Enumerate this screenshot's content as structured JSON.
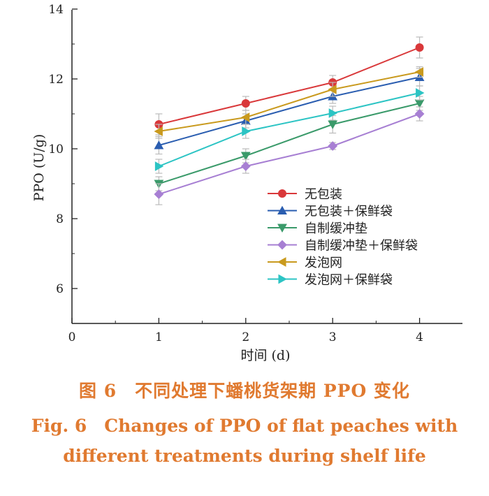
{
  "chart_data": {
    "type": "line",
    "xlabel": "时间 (d)",
    "ylabel": "PPO (U/g)",
    "xlim": [
      0,
      4.5
    ],
    "ylim": [
      5,
      14
    ],
    "x_ticks": [
      0,
      1,
      2,
      3,
      4
    ],
    "y_ticks": [
      6,
      8,
      10,
      12,
      14
    ],
    "x": [
      1,
      2,
      3,
      4
    ],
    "legend_position": "center-right",
    "grid": false,
    "series": [
      {
        "name": "无包装",
        "values": [
          10.7,
          11.3,
          11.9,
          12.9
        ],
        "errors": [
          0.3,
          0.2,
          0.2,
          0.3
        ],
        "color": "#d9383a",
        "marker": "circle"
      },
      {
        "name": "无包装＋保鲜袋",
        "values": [
          10.1,
          10.8,
          11.5,
          12.05
        ],
        "errors": [
          0.25,
          0.2,
          0.2,
          0.25
        ],
        "color": "#2a5db0",
        "marker": "triangle-up"
      },
      {
        "name": "自制缓冲垫",
        "values": [
          9.0,
          9.8,
          10.7,
          11.3
        ],
        "errors": [
          0.2,
          0.2,
          0.25,
          0.2
        ],
        "color": "#3a9a6a",
        "marker": "triangle-down"
      },
      {
        "name": "自制缓冲垫＋保鲜袋",
        "values": [
          8.7,
          9.5,
          10.08,
          11.0
        ],
        "errors": [
          0.3,
          0.2,
          0.1,
          0.2
        ],
        "color": "#a77fd3",
        "marker": "diamond"
      },
      {
        "name": "发泡网",
        "values": [
          10.5,
          10.9,
          11.7,
          12.2
        ],
        "errors": [
          0.2,
          0.2,
          0.2,
          0.15
        ],
        "color": "#c99a1e",
        "marker": "triangle-left"
      },
      {
        "name": "发泡网＋保鲜袋",
        "values": [
          9.5,
          10.5,
          11.02,
          11.6
        ],
        "errors": [
          0.2,
          0.2,
          0.2,
          0.2
        ],
        "color": "#2cc4c4",
        "marker": "triangle-right"
      }
    ]
  },
  "caption": {
    "cn": "图 6　不同处理下蟠桃货架期 PPO 变化",
    "en_line1": "Fig. 6　Changes of PPO of flat peaches with",
    "en_line2": "different treatments during shelf life"
  }
}
